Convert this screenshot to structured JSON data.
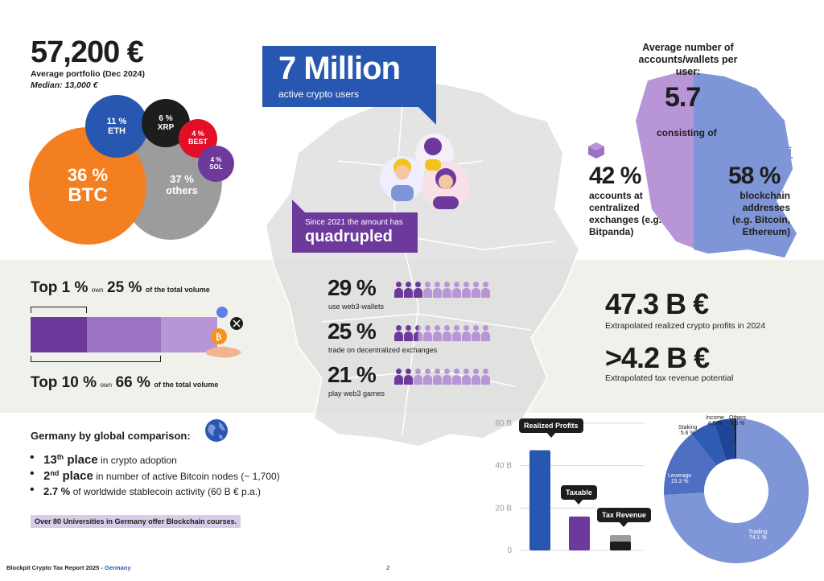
{
  "colors": {
    "purple": "#6d3a9c",
    "purple_mid": "#9a73c2",
    "purple_light": "#b795d6",
    "blue": "#2757b0",
    "blue_light": "#7e96d8",
    "orange": "#f47f21",
    "gray": "#9c9c9c",
    "black": "#1d1d1b",
    "red": "#e30f27"
  },
  "portfolio": {
    "value": "57,200 €",
    "label": "Average portfolio (Dec 2024)",
    "median": "Median: 13,000 €",
    "assets": [
      {
        "pct": "36 %",
        "name": "BTC"
      },
      {
        "pct": "37 %",
        "name": "others"
      },
      {
        "pct": "11 %",
        "name": "ETH"
      },
      {
        "pct": "6 %",
        "name": "XRP"
      },
      {
        "pct": "4 %",
        "name": "BEST"
      },
      {
        "pct": "4 %",
        "name": "SOL"
      }
    ]
  },
  "users": {
    "big": "7 Million",
    "sub": "active crypto users",
    "since": "Since 2021 the amount has",
    "since_big": "quadrupled"
  },
  "accounts": {
    "title": "Average number of accounts/wallets per user:",
    "value": "5.7",
    "consisting": "consisting of",
    "left_pct": "42 %",
    "left_label": "accounts at centralized exchanges (e.g. Bitpanda)",
    "right_pct": "58 %",
    "right_label": "blockchain addresses (e.g. Bitcoin, Ethereum)"
  },
  "concentration": {
    "top1_a": "Top 1 %",
    "top1_own": "own",
    "top1_b": "25 %",
    "top1_c": "of the total volume",
    "top10_a": "Top 10 %",
    "top10_own": "own",
    "top10_b": "66 %",
    "top10_c": "of the total volume"
  },
  "web3": [
    {
      "pct": "29 %",
      "label": "use web3-wallets",
      "filled": 3
    },
    {
      "pct": "25 %",
      "label": "trade on decentralized exchanges",
      "filled": 2.5
    },
    {
      "pct": "21 %",
      "label": "play web3 games",
      "filled": 2
    }
  ],
  "profits": {
    "value": "47.3 B €",
    "label": "Extrapolated realized crypto profits in 2024",
    "tax_value": ">4.2 B €",
    "tax_label": "Extrapolated tax revenue potential"
  },
  "comparison": {
    "title": "Germany by global comparison:",
    "items": [
      {
        "num": "13",
        "sup": "th",
        "bold": " place",
        "rest": " in crypto adoption"
      },
      {
        "num": "2",
        "sup": "nd",
        "bold": " place",
        "rest": " in number of active Bitcoin nodes (~ 1,700)"
      },
      {
        "num": "2.7 %",
        "sup": "",
        "bold": "",
        "rest": " of worldwide stablecoin activity (60 B € p.a.)"
      }
    ],
    "note": "Over 80 Universities in Germany offer Blockchain courses."
  },
  "footer": {
    "left": "Blockpit Crypto Tax Report 2025 - ",
    "left_accent": "Germany",
    "page": "2"
  },
  "chart_data": [
    {
      "type": "bar",
      "title": "",
      "categories": [
        "Realized Profits",
        "Taxable",
        "Tax Revenue"
      ],
      "values": [
        47.3,
        16,
        4.2
      ],
      "yticks": [
        "0",
        "20 B",
        "40 B",
        "60 B"
      ],
      "ylim": [
        0,
        60
      ],
      "colors": [
        "#2757b0",
        "#6d3a9c",
        "#1d1d1b"
      ]
    },
    {
      "type": "pie",
      "title": "",
      "labels": [
        "Trading",
        "Leverage",
        "Staking",
        "Income",
        "Others"
      ],
      "value_labels": [
        "74.1 %",
        "15.3 %",
        "5.6 %",
        "4.5 %",
        "0.5 %"
      ],
      "values": [
        74.1,
        15.3,
        5.6,
        4.5,
        0.5
      ],
      "colors": [
        "#7e96d8",
        "#4f70c2",
        "#2f5bb3",
        "#1f4596",
        "#1d1d1b"
      ]
    }
  ]
}
